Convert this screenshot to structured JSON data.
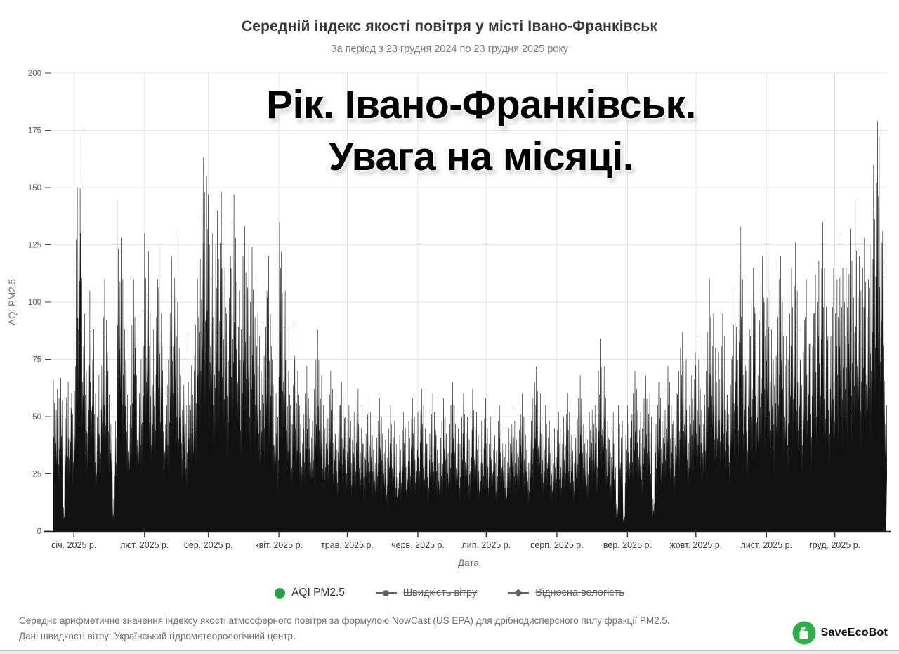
{
  "header": {
    "title": "Середній індекс якості повітря у місті Івано-Франківськ",
    "subtitle": "За період з 23 грудня 2024 по 23 грудня 2025 року"
  },
  "overlay": {
    "line1": "Рік. Івано-Франківськ.",
    "line2": "Увага на місяці."
  },
  "legend": {
    "items": [
      {
        "label": "AQI PM2.5",
        "marker": "circle",
        "color": "#27a24b",
        "active": true
      },
      {
        "label": "Швидкість вітру",
        "marker": "line-circle",
        "color": "#5f6368",
        "active": false
      },
      {
        "label": "Відносна вологість",
        "marker": "line-diamond",
        "color": "#5f6368",
        "active": false
      }
    ]
  },
  "chart_data": {
    "type": "area",
    "title": "Середній індекс якості повітря у місті Івано-Франківськ",
    "period": "23 грудня 2024 — 23 грудня 2025",
    "xlabel": "Дата",
    "ylabel": "AQI PM2.5",
    "ylim": [
      0,
      200
    ],
    "grid": true,
    "y_ticks": [
      0,
      25,
      50,
      75,
      100,
      125,
      150,
      175,
      200
    ],
    "x_tick_labels": [
      "січ. 2025 р.",
      "лют. 2025 р.",
      "бер. 2025 р.",
      "квіт. 2025 р.",
      "трав. 2025 р.",
      "черв. 2025 р.",
      "лип. 2025 р.",
      "серп. 2025 р.",
      "вер. 2025 р.",
      "жовт. 2025 р.",
      "лист. 2025 р.",
      "груд. 2025 р."
    ],
    "month_start_days": [
      9,
      40,
      68,
      99,
      129,
      160,
      190,
      221,
      252,
      282,
      313,
      343
    ],
    "series_name": "AQI PM2.5",
    "series_color": "#111111",
    "legend_position": "bottom",
    "daily_peaks": [
      66,
      62,
      58,
      67,
      12,
      58,
      65,
      63,
      60,
      72,
      150,
      176,
      130,
      95,
      70,
      85,
      105,
      88,
      60,
      50,
      68,
      85,
      110,
      92,
      70,
      55,
      14,
      48,
      145,
      128,
      110,
      88,
      70,
      55,
      90,
      110,
      80,
      60,
      75,
      95,
      130,
      122,
      95,
      75,
      88,
      110,
      125,
      95,
      70,
      55,
      75,
      95,
      120,
      130,
      100,
      80,
      62,
      75,
      55,
      65,
      85,
      70,
      90,
      110,
      140,
      163,
      148,
      155,
      147,
      130,
      110,
      125,
      140,
      148,
      135,
      115,
      95,
      120,
      135,
      147,
      128,
      105,
      88,
      120,
      133,
      125,
      100,
      124,
      110,
      95,
      85,
      70,
      90,
      105,
      120,
      95,
      75,
      60,
      50,
      135,
      122,
      105,
      88,
      70,
      55,
      75,
      90,
      70,
      55,
      45,
      60,
      72,
      58,
      48,
      62,
      75,
      88,
      68,
      55,
      45,
      58,
      70,
      62,
      50,
      42,
      55,
      65,
      58,
      50,
      55,
      48,
      40,
      52,
      62,
      55,
      45,
      38,
      50,
      60,
      52,
      42,
      35,
      48,
      58,
      50,
      40,
      32,
      45,
      55,
      48,
      38,
      30,
      42,
      52,
      45,
      36,
      48,
      58,
      50,
      42,
      52,
      62,
      55,
      45,
      38,
      50,
      60,
      52,
      42,
      35,
      48,
      58,
      50,
      40,
      55,
      65,
      55,
      45,
      38,
      50,
      60,
      50,
      40,
      52,
      62,
      52,
      42,
      35,
      48,
      58,
      45,
      38,
      50,
      42,
      35,
      48,
      55,
      45,
      38,
      30,
      45,
      55,
      48,
      40,
      52,
      60,
      50,
      42,
      35,
      48,
      58,
      65,
      72,
      60,
      50,
      42,
      55,
      48,
      40,
      35,
      45,
      52,
      45,
      38,
      50,
      60,
      52,
      42,
      35,
      48,
      58,
      68,
      55,
      45,
      40,
      52,
      62,
      55,
      45,
      70,
      84,
      72,
      58,
      48,
      40,
      52,
      45,
      12,
      55,
      48,
      10,
      42,
      55,
      48,
      60,
      70,
      62,
      52,
      45,
      58,
      68,
      60,
      50,
      14,
      55,
      65,
      58,
      48,
      62,
      72,
      65,
      55,
      48,
      60,
      70,
      80,
      87,
      75,
      62,
      55,
      68,
      78,
      85,
      75,
      62,
      55,
      70,
      87,
      110,
      95,
      80,
      65,
      78,
      95,
      85,
      70,
      60,
      75,
      90,
      105,
      88,
      133,
      110,
      85,
      70,
      88,
      100,
      115,
      95,
      80,
      108,
      120,
      100,
      120,
      105,
      88,
      75,
      90,
      110,
      120,
      100,
      85,
      75,
      95,
      115,
      126,
      105,
      88,
      75,
      92,
      110,
      96,
      82,
      95,
      112,
      100,
      118,
      135,
      115,
      98,
      85,
      100,
      115,
      95,
      110,
      130,
      115,
      100,
      115,
      132,
      118,
      102,
      144,
      120,
      105,
      115,
      128,
      110,
      125,
      140,
      160,
      179,
      172,
      148,
      131,
      55
    ]
  },
  "footer": {
    "line1": "Середнє арифметичне значення індексу якості атмосферного повітря за формулою NowCast (US EPA) для дрібнодисперсного пилу фракції PM2.5.",
    "line2": "Дані швидкості вітру: Український гідрометеорологічний центр.",
    "brand": "SaveEcoBot"
  }
}
